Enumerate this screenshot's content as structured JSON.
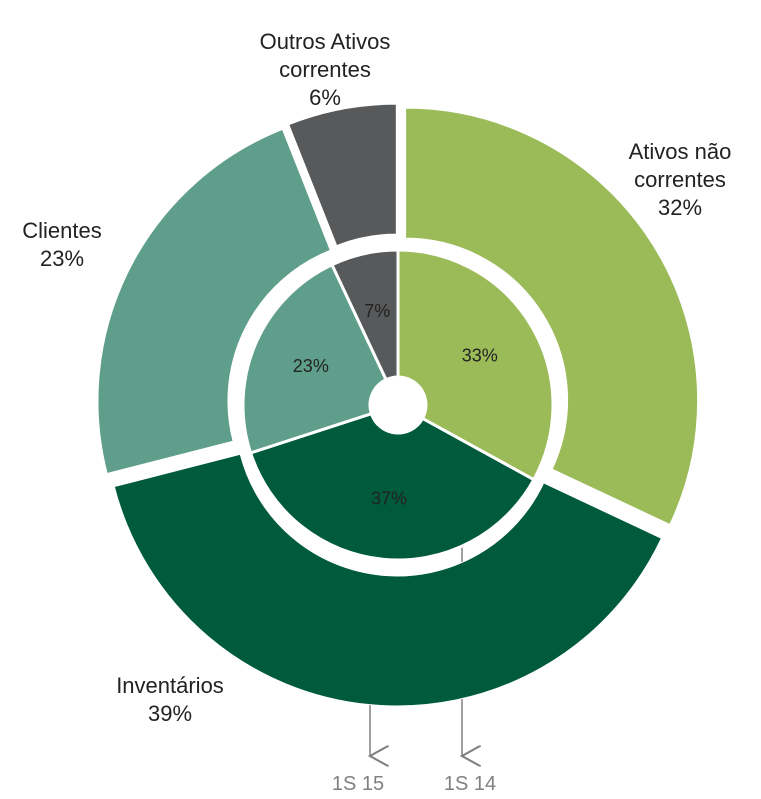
{
  "chart_data": {
    "type": "donut",
    "categories": [
      "Ativos não correntes",
      "Inventários",
      "Clientes",
      "Outros Ativos correntes"
    ],
    "colors": [
      "#9bbb59",
      "#005a3c",
      "#5f9e8a",
      "#58595b"
    ],
    "series": [
      {
        "name": "1S 15",
        "values": [
          32,
          39,
          23,
          6
        ],
        "value_labels": [
          "32%",
          "39%",
          "23%",
          "6%"
        ]
      },
      {
        "name": "1S 14",
        "values": [
          33,
          37,
          23,
          7
        ],
        "value_labels": [
          "33%",
          "37%",
          "23%",
          "7%"
        ]
      }
    ]
  }
}
